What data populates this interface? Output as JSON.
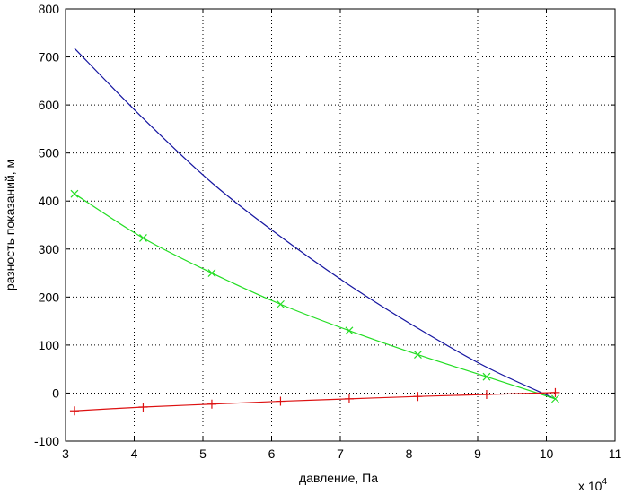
{
  "chart_data": {
    "type": "line",
    "title": "",
    "xlabel": "давление, Па",
    "ylabel": "разность показаний, м",
    "x_exponent_label": "x 10",
    "x_exponent_power": "4",
    "xlim": [
      30000,
      110000
    ],
    "ylim": [
      -100,
      800
    ],
    "x_ticks": [
      30000,
      40000,
      50000,
      60000,
      70000,
      80000,
      90000,
      100000,
      110000
    ],
    "x_tick_labels": [
      "3",
      "4",
      "5",
      "6",
      "7",
      "8",
      "9",
      "10",
      "11"
    ],
    "y_ticks": [
      -100,
      0,
      100,
      200,
      300,
      400,
      500,
      600,
      700,
      800
    ],
    "y_tick_labels": [
      "-100",
      "0",
      "100",
      "200",
      "300",
      "400",
      "500",
      "600",
      "700",
      "800"
    ],
    "grid": true,
    "legend": "none",
    "series": [
      {
        "color": "#1414a0",
        "marker": "none",
        "x": [
          31300,
          41300,
          51300,
          61300,
          71300,
          81300,
          91300,
          101300
        ],
        "y": [
          718,
          572,
          438,
          326,
          225,
          135,
          54,
          -12
        ]
      },
      {
        "color": "#22dd22",
        "marker": "x",
        "x": [
          31300,
          41300,
          51300,
          61300,
          71300,
          81300,
          91300,
          101300
        ],
        "y": [
          415,
          323,
          250,
          185,
          130,
          80,
          34,
          -12
        ]
      },
      {
        "color": "#dd1111",
        "marker": "+",
        "x": [
          31300,
          41300,
          51300,
          61300,
          71300,
          81300,
          91300,
          101300
        ],
        "y": [
          -37,
          -29,
          -23,
          -17,
          -12,
          -7,
          -3,
          1
        ]
      }
    ]
  }
}
